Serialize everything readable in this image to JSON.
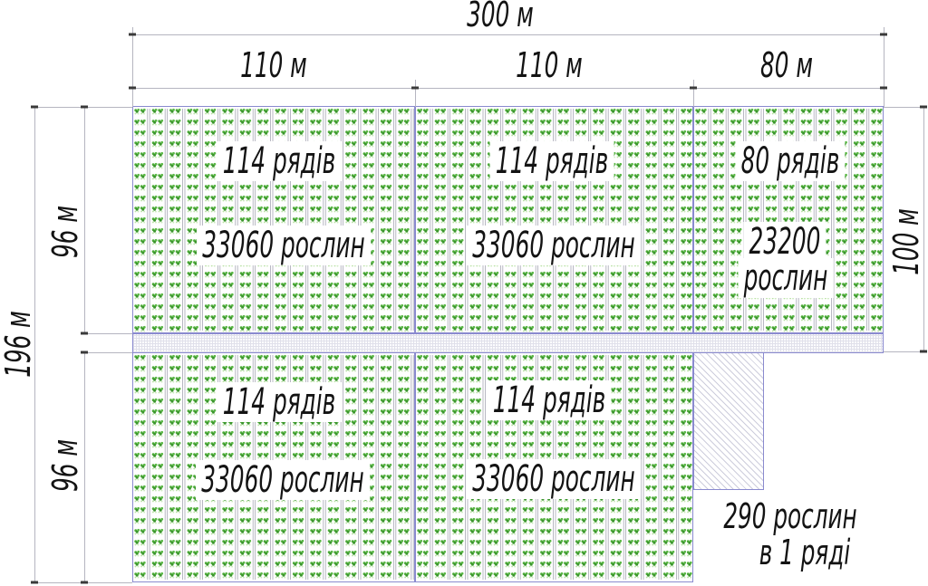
{
  "dims": {
    "total_width": "300 м",
    "upper_col_1": "110 м",
    "upper_col_2": "110 м",
    "upper_col_3": "80 м",
    "total_height": "196 м",
    "row_upper": "96 м",
    "row_lower": "96 м",
    "right_height": "100 м"
  },
  "plots": {
    "upper_1": {
      "rows_label": "114 рядів",
      "plants_label": "33060 рослин"
    },
    "upper_2": {
      "rows_label": "114 рядів",
      "plants_label": "33060 рослин"
    },
    "upper_3": {
      "rows_label": "80 рядів",
      "plants_count": "23200",
      "plants_word": "рослин"
    },
    "lower_1": {
      "rows_label": "114 рядів",
      "plants_label": "33060 рослин"
    },
    "lower_2": {
      "rows_label": "114 рядів",
      "plants_label": "33060 рослин"
    }
  },
  "note": {
    "line_1": "290 рослин",
    "line_2": "в 1 ряді"
  },
  "colors": {
    "plot_border": "#8a8acf",
    "plant_green_dark": "#3c962e",
    "plant_green_mid": "#4caa38",
    "plant_green_light": "#b9e2a4",
    "dim_line": "#b5b5c0",
    "tick": "#3a3a3a",
    "text": "#131313"
  }
}
